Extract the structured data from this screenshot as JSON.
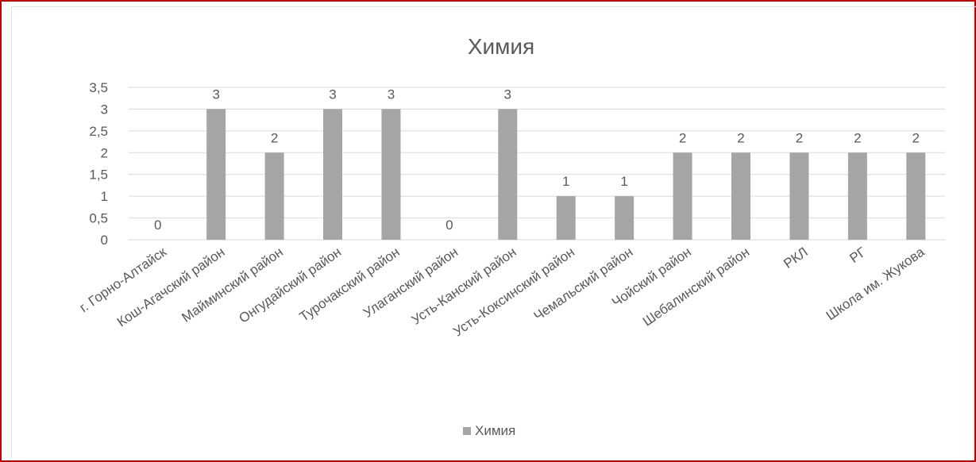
{
  "chart_data": {
    "type": "bar",
    "title": "Химия",
    "categories": [
      "г. Горно-Алтайск",
      "Кош-Агачский район",
      "Майминский район",
      "Онгудайский район",
      "Турочакский район",
      "Улаганский район",
      "Усть-Канский район",
      "Усть-Коксинский район",
      "Чемальский район",
      "Чойский район",
      "Шебалинский район",
      "РКЛ",
      "РГ",
      "Школа им. Жукова"
    ],
    "series": [
      {
        "name": "Химия",
        "values": [
          0,
          3,
          2,
          3,
          3,
          0,
          3,
          1,
          1,
          2,
          2,
          2,
          2,
          2
        ]
      }
    ],
    "data_labels": [
      "0",
      "3",
      "2",
      "3",
      "3",
      "0",
      "3",
      "1",
      "1",
      "2",
      "2",
      "2",
      "2",
      "2"
    ],
    "y_ticks": [
      "0",
      "0,5",
      "1",
      "1,5",
      "2",
      "2,5",
      "3",
      "3,5"
    ],
    "y_tick_values": [
      0,
      0.5,
      1,
      1.5,
      2,
      2.5,
      3,
      3.5
    ],
    "ylim": [
      0,
      3.5
    ],
    "grid": true,
    "legend": "bottom",
    "bar_color": "#a5a5a5",
    "grid_color": "#d9d9d9",
    "text_color": "#595959"
  }
}
